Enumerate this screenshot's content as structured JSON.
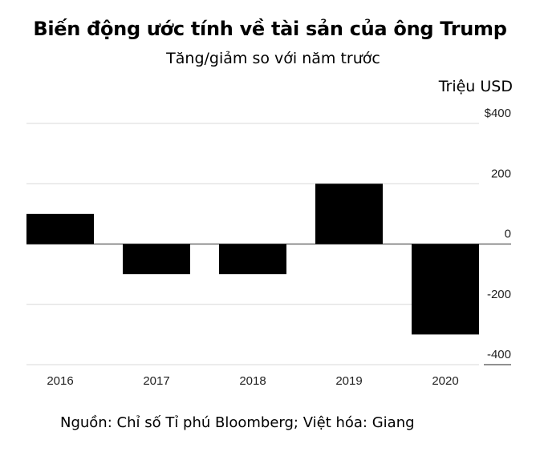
{
  "chart_data": {
    "type": "bar",
    "title": "Biến động ước tính về tài sản của ông Trump",
    "subtitle": "Tăng/giảm so với năm trước",
    "ylabel": "Triệu USD",
    "categories": [
      "2016",
      "2017",
      "2018",
      "2019",
      "2020"
    ],
    "values": [
      100,
      -100,
      -100,
      200,
      -300
    ],
    "ylim": [
      -400,
      400
    ],
    "yticks": [
      400,
      200,
      0,
      -200,
      -400
    ],
    "ytick_labels": [
      "$400",
      "200",
      "0",
      "-200",
      "-400"
    ],
    "grid": true,
    "bar_color": "#000000",
    "source": "Nguồn: Chỉ số Tỉ phú Bloomberg; Việt hóa: Giang"
  }
}
